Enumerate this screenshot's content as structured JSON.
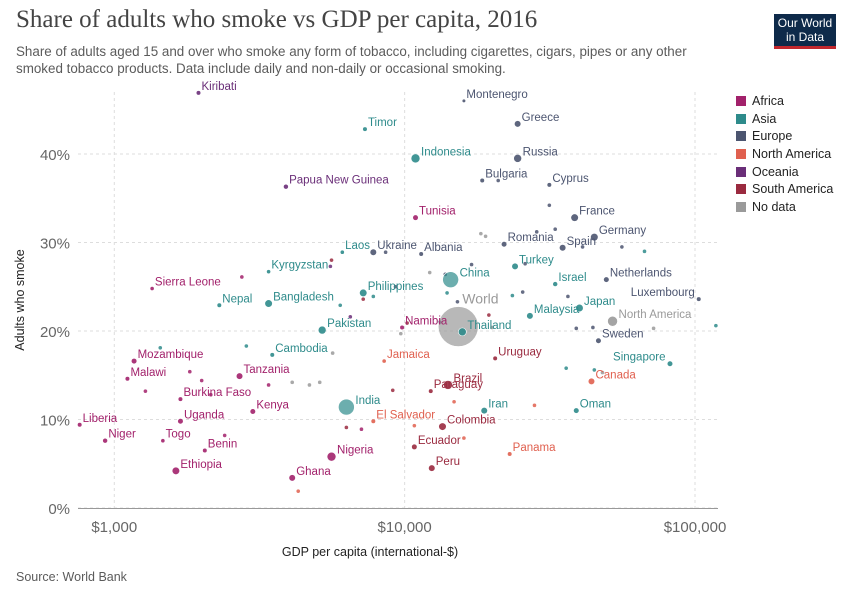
{
  "header": {
    "title": "Share of adults who smoke vs GDP per capita, 2016",
    "subtitle": "Share of adults aged 15 and over who smoke any form of tobacco, including cigarettes, cigars, pipes or any other smoked tobacco products. Data include daily and non-daily or occasional smoking.",
    "logo_line1": "Our World",
    "logo_line2": "in Data"
  },
  "footer": {
    "source": "Source: World Bank"
  },
  "colors": {
    "Africa": "#a2216b",
    "Asia": "#2e8b8b",
    "Europe": "#4c5570",
    "North America": "#e0604f",
    "Oceania": "#6a2e78",
    "South America": "#9a2a3f",
    "No data": "#9a9a9a"
  },
  "chart_data": {
    "type": "scatter",
    "xlabel": "GDP per capita (international-$)",
    "ylabel": "Adults who smoke",
    "x_scale": "log",
    "xlim": [
      750,
      120000
    ],
    "ylim": [
      0,
      47
    ],
    "x_ticks": [
      {
        "value": 1000,
        "label": "$1,000"
      },
      {
        "value": 10000,
        "label": "$10,000"
      },
      {
        "value": 100000,
        "label": "$100,000"
      }
    ],
    "y_ticks": [
      {
        "value": 0,
        "label": "0%"
      },
      {
        "value": 10,
        "label": "10%"
      },
      {
        "value": 20,
        "label": "20%"
      },
      {
        "value": 30,
        "label": "30%"
      },
      {
        "value": 40,
        "label": "40%"
      }
    ],
    "grid": true,
    "legend_position": "right",
    "legend": [
      "Africa",
      "Asia",
      "Europe",
      "North America",
      "Oceania",
      "South America",
      "No data"
    ],
    "points": [
      {
        "label": "Kiribati",
        "x": 1950,
        "y": 46.9,
        "group": "Oceania",
        "r": 2
      },
      {
        "label": "Montenegro",
        "x": 16000,
        "y": 46.0,
        "group": "Europe",
        "r": 1.5
      },
      {
        "label": "Greece",
        "x": 24500,
        "y": 43.4,
        "group": "Europe",
        "r": 3
      },
      {
        "label": "Timor",
        "x": 7300,
        "y": 42.8,
        "group": "Asia",
        "r": 2
      },
      {
        "label": "Indonesia",
        "x": 10900,
        "y": 39.5,
        "group": "Asia",
        "r": 4.5
      },
      {
        "label": "Russia",
        "x": 24500,
        "y": 39.5,
        "group": "Europe",
        "r": 4
      },
      {
        "label": "Bulgaria",
        "x": 18500,
        "y": 37.0,
        "group": "Europe",
        "r": 2
      },
      {
        "label": "Cyprus",
        "x": 31500,
        "y": 36.5,
        "group": "Europe",
        "r": 2
      },
      {
        "label": "Papua New Guinea",
        "x": 3900,
        "y": 36.3,
        "group": "Oceania",
        "r": 2.2
      },
      {
        "label": "Tunisia",
        "x": 10900,
        "y": 32.8,
        "group": "Africa",
        "r": 2.5
      },
      {
        "label": "France",
        "x": 38500,
        "y": 32.8,
        "group": "Europe",
        "r": 3.5
      },
      {
        "label": "Germany",
        "x": 45000,
        "y": 30.6,
        "group": "Europe",
        "r": 3.5
      },
      {
        "label": "Romania",
        "x": 22000,
        "y": 29.8,
        "group": "Europe",
        "r": 2.5
      },
      {
        "label": "Spain",
        "x": 35000,
        "y": 29.4,
        "group": "Europe",
        "r": 3
      },
      {
        "label": "Laos",
        "x": 6100,
        "y": 28.9,
        "group": "Asia",
        "r": 1.8
      },
      {
        "label": "Ukraine",
        "x": 7800,
        "y": 28.9,
        "group": "Europe",
        "r": 3
      },
      {
        "label": "Albania",
        "x": 11400,
        "y": 28.7,
        "group": "Europe",
        "r": 2
      },
      {
        "label": "Turkey",
        "x": 24000,
        "y": 27.3,
        "group": "Asia",
        "r": 3
      },
      {
        "label": "China",
        "x": 14400,
        "y": 25.8,
        "group": "Asia",
        "r": 8
      },
      {
        "label": "Kyrgyzstan",
        "x": 3400,
        "y": 26.7,
        "group": "Asia",
        "r": 1.8
      },
      {
        "label": "Netherlands",
        "x": 49500,
        "y": 25.8,
        "group": "Europe",
        "r": 2.5
      },
      {
        "label": "Israel",
        "x": 33000,
        "y": 25.3,
        "group": "Asia",
        "r": 2.2
      },
      {
        "label": "Sierra Leone",
        "x": 1350,
        "y": 24.8,
        "group": "Africa",
        "r": 1.8
      },
      {
        "label": "Philippines",
        "x": 7200,
        "y": 24.3,
        "group": "Asia",
        "r": 3.5
      },
      {
        "label": "Luxembourg",
        "x": 103000,
        "y": 23.6,
        "group": "Europe",
        "r": 2
      },
      {
        "label": "Nepal",
        "x": 2300,
        "y": 22.9,
        "group": "Asia",
        "r": 2
      },
      {
        "label": "Bangladesh",
        "x": 3400,
        "y": 23.1,
        "group": "Asia",
        "r": 3.5
      },
      {
        "label": "Japan",
        "x": 40000,
        "y": 22.6,
        "group": "Asia",
        "r": 3.5
      },
      {
        "label": "Malaysia",
        "x": 27000,
        "y": 21.7,
        "group": "Asia",
        "r": 3
      },
      {
        "label": "North America",
        "x": 52000,
        "y": 21.1,
        "group": "No data",
        "r": 5
      },
      {
        "label": "Namibia",
        "x": 9800,
        "y": 20.4,
        "group": "Africa",
        "r": 2
      },
      {
        "label": "World",
        "x": 15300,
        "y": 20.5,
        "group": "No data",
        "r": 20
      },
      {
        "label": "Thailand",
        "x": 15800,
        "y": 19.9,
        "group": "Asia",
        "r": 4
      },
      {
        "label": "Pakistan",
        "x": 5200,
        "y": 20.1,
        "group": "Asia",
        "r": 4
      },
      {
        "label": "Sweden",
        "x": 46500,
        "y": 18.9,
        "group": "Europe",
        "r": 2.5
      },
      {
        "label": "Cambodia",
        "x": 3500,
        "y": 17.3,
        "group": "Asia",
        "r": 2
      },
      {
        "label": "Jamaica",
        "x": 8500,
        "y": 16.6,
        "group": "North America",
        "r": 1.8
      },
      {
        "label": "Uruguay",
        "x": 20500,
        "y": 16.9,
        "group": "South America",
        "r": 2
      },
      {
        "label": "Mozambique",
        "x": 1170,
        "y": 16.6,
        "group": "Africa",
        "r": 2.5
      },
      {
        "label": "Singapore",
        "x": 82000,
        "y": 16.3,
        "group": "Asia",
        "r": 2.5
      },
      {
        "label": "Tanzania",
        "x": 2700,
        "y": 14.9,
        "group": "Africa",
        "r": 3
      },
      {
        "label": "Malawi",
        "x": 1110,
        "y": 14.6,
        "group": "Africa",
        "r": 2
      },
      {
        "label": "Canada",
        "x": 44000,
        "y": 14.3,
        "group": "North America",
        "r": 3
      },
      {
        "label": "Brazil",
        "x": 14100,
        "y": 13.9,
        "group": "South America",
        "r": 4.5
      },
      {
        "label": "Paraguay",
        "x": 12300,
        "y": 13.2,
        "group": "South America",
        "r": 2
      },
      {
        "label": "Burkina Faso",
        "x": 1690,
        "y": 12.3,
        "group": "Africa",
        "r": 2
      },
      {
        "label": "Kenya",
        "x": 3000,
        "y": 10.9,
        "group": "Africa",
        "r": 2.5
      },
      {
        "label": "Iran",
        "x": 18800,
        "y": 11.0,
        "group": "Asia",
        "r": 3
      },
      {
        "label": "Oman",
        "x": 39000,
        "y": 11.0,
        "group": "Asia",
        "r": 2.5
      },
      {
        "label": "India",
        "x": 6300,
        "y": 11.4,
        "group": "Asia",
        "r": 8
      },
      {
        "label": "Uganda",
        "x": 1690,
        "y": 9.8,
        "group": "Africa",
        "r": 2.5
      },
      {
        "label": "Liberia",
        "x": 760,
        "y": 9.4,
        "group": "Africa",
        "r": 2
      },
      {
        "label": "El Salvador",
        "x": 7800,
        "y": 9.8,
        "group": "North America",
        "r": 2
      },
      {
        "label": "Colombia",
        "x": 13500,
        "y": 9.2,
        "group": "South America",
        "r": 3.5
      },
      {
        "label": "Togo",
        "x": 1470,
        "y": 7.6,
        "group": "Africa",
        "r": 1.8
      },
      {
        "label": "Niger",
        "x": 930,
        "y": 7.6,
        "group": "Africa",
        "r": 2.2
      },
      {
        "label": "Benin",
        "x": 2050,
        "y": 6.5,
        "group": "Africa",
        "r": 2
      },
      {
        "label": "Ecuador",
        "x": 10800,
        "y": 6.9,
        "group": "South America",
        "r": 2.5
      },
      {
        "label": "Panama",
        "x": 23000,
        "y": 6.1,
        "group": "North America",
        "r": 2
      },
      {
        "label": "Nigeria",
        "x": 5600,
        "y": 5.8,
        "group": "Africa",
        "r": 4.5
      },
      {
        "label": "Ethiopia",
        "x": 1630,
        "y": 4.2,
        "group": "Africa",
        "r": 3.5
      },
      {
        "label": "Peru",
        "x": 12400,
        "y": 4.5,
        "group": "South America",
        "r": 3
      },
      {
        "label": "Ghana",
        "x": 4100,
        "y": 3.4,
        "group": "Africa",
        "r": 3
      }
    ],
    "unlabeled": [
      {
        "x": 1440,
        "y": 18.1,
        "group": "Asia"
      },
      {
        "x": 2850,
        "y": 18.3,
        "group": "Asia"
      },
      {
        "x": 2750,
        "y": 26.1,
        "group": "Africa"
      },
      {
        "x": 5550,
        "y": 27.3,
        "group": "Oceania"
      },
      {
        "x": 5600,
        "y": 28.0,
        "group": "South America"
      },
      {
        "x": 6000,
        "y": 22.9,
        "group": "Asia"
      },
      {
        "x": 6500,
        "y": 21.6,
        "group": "Oceania"
      },
      {
        "x": 7200,
        "y": 23.6,
        "group": "South America"
      },
      {
        "x": 7800,
        "y": 23.9,
        "group": "Asia"
      },
      {
        "x": 8600,
        "y": 28.9,
        "group": "Europe"
      },
      {
        "x": 9300,
        "y": 25.0,
        "group": "Europe"
      },
      {
        "x": 9700,
        "y": 19.7,
        "group": "No data"
      },
      {
        "x": 10200,
        "y": 20.9,
        "group": "South America"
      },
      {
        "x": 12200,
        "y": 26.6,
        "group": "No data"
      },
      {
        "x": 13200,
        "y": 21.0,
        "group": "Europe"
      },
      {
        "x": 13800,
        "y": 26.4,
        "group": "Europe"
      },
      {
        "x": 14000,
        "y": 24.3,
        "group": "Asia"
      },
      {
        "x": 15200,
        "y": 23.3,
        "group": "Europe"
      },
      {
        "x": 17000,
        "y": 27.5,
        "group": "Europe"
      },
      {
        "x": 18300,
        "y": 31.0,
        "group": "No data"
      },
      {
        "x": 19000,
        "y": 30.7,
        "group": "No data"
      },
      {
        "x": 19500,
        "y": 21.8,
        "group": "South America"
      },
      {
        "x": 20000,
        "y": 20.4,
        "group": "No data"
      },
      {
        "x": 21000,
        "y": 37.0,
        "group": "Europe"
      },
      {
        "x": 23500,
        "y": 24.0,
        "group": "Asia"
      },
      {
        "x": 25500,
        "y": 24.4,
        "group": "Europe"
      },
      {
        "x": 26000,
        "y": 27.6,
        "group": "Europe"
      },
      {
        "x": 28000,
        "y": 11.6,
        "group": "North America"
      },
      {
        "x": 28500,
        "y": 31.2,
        "group": "Europe"
      },
      {
        "x": 31500,
        "y": 34.2,
        "group": "Europe"
      },
      {
        "x": 33000,
        "y": 31.5,
        "group": "Europe"
      },
      {
        "x": 36000,
        "y": 15.8,
        "group": "Asia"
      },
      {
        "x": 36500,
        "y": 23.9,
        "group": "Europe"
      },
      {
        "x": 39000,
        "y": 20.3,
        "group": "Europe"
      },
      {
        "x": 41000,
        "y": 29.5,
        "group": "Europe"
      },
      {
        "x": 44500,
        "y": 20.4,
        "group": "Europe"
      },
      {
        "x": 45000,
        "y": 15.6,
        "group": "Asia"
      },
      {
        "x": 48000,
        "y": 15.3,
        "group": "No data"
      },
      {
        "x": 56000,
        "y": 29.5,
        "group": "Europe"
      },
      {
        "x": 67000,
        "y": 29.0,
        "group": "Asia"
      },
      {
        "x": 72000,
        "y": 20.3,
        "group": "No data"
      },
      {
        "x": 118000,
        "y": 20.6,
        "group": "Asia"
      },
      {
        "x": 1280,
        "y": 13.2,
        "group": "Africa"
      },
      {
        "x": 1820,
        "y": 15.4,
        "group": "Africa"
      },
      {
        "x": 2150,
        "y": 12.8,
        "group": "Africa"
      },
      {
        "x": 2400,
        "y": 8.2,
        "group": "Africa"
      },
      {
        "x": 3400,
        "y": 13.9,
        "group": "Africa"
      },
      {
        "x": 4100,
        "y": 14.2,
        "group": "No data"
      },
      {
        "x": 4700,
        "y": 13.9,
        "group": "No data"
      },
      {
        "x": 5100,
        "y": 14.2,
        "group": "No data"
      },
      {
        "x": 5650,
        "y": 17.5,
        "group": "No data"
      },
      {
        "x": 6300,
        "y": 9.1,
        "group": "South America"
      },
      {
        "x": 7100,
        "y": 8.9,
        "group": "Africa"
      },
      {
        "x": 9100,
        "y": 13.3,
        "group": "South America"
      },
      {
        "x": 10800,
        "y": 9.3,
        "group": "North America"
      },
      {
        "x": 14800,
        "y": 12.0,
        "group": "North America"
      },
      {
        "x": 16000,
        "y": 7.9,
        "group": "North America"
      },
      {
        "x": 4300,
        "y": 1.9,
        "group": "North America"
      },
      {
        "x": 2000,
        "y": 14.4,
        "group": "Africa"
      }
    ]
  }
}
